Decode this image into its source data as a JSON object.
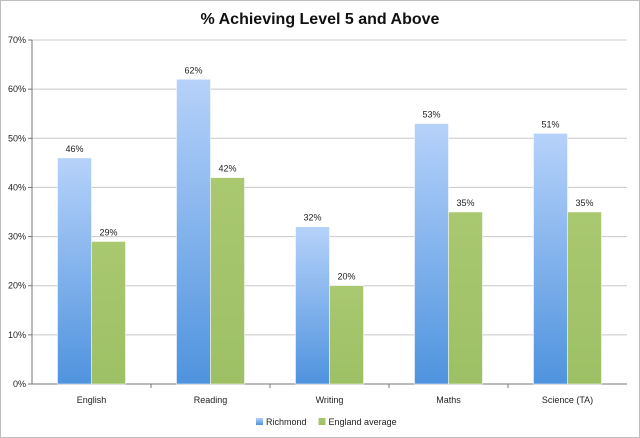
{
  "chart_data": {
    "type": "bar",
    "title": "% Achieving Level 5 and Above",
    "xlabel": "",
    "ylabel": "",
    "ylim": [
      0,
      70
    ],
    "yticks": [
      0,
      10,
      20,
      30,
      40,
      50,
      60,
      70
    ],
    "ytick_labels": [
      "0%",
      "10%",
      "20%",
      "30%",
      "40%",
      "50%",
      "60%",
      "70%"
    ],
    "grid": true,
    "legend_position": "bottom",
    "categories": [
      "English",
      "Reading",
      "Writing",
      "Maths",
      "Science (TA)"
    ],
    "series": [
      {
        "name": "Richmond",
        "color": "#8fb8f2",
        "values": [
          46,
          62,
          32,
          53,
          51
        ],
        "labels": [
          "46%",
          "62%",
          "32%",
          "53%",
          "51%"
        ]
      },
      {
        "name": "England average",
        "color": "#a3c46a",
        "values": [
          29,
          42,
          20,
          35,
          35
        ],
        "labels": [
          "29%",
          "42%",
          "20%",
          "35%",
          "35%"
        ]
      }
    ]
  }
}
